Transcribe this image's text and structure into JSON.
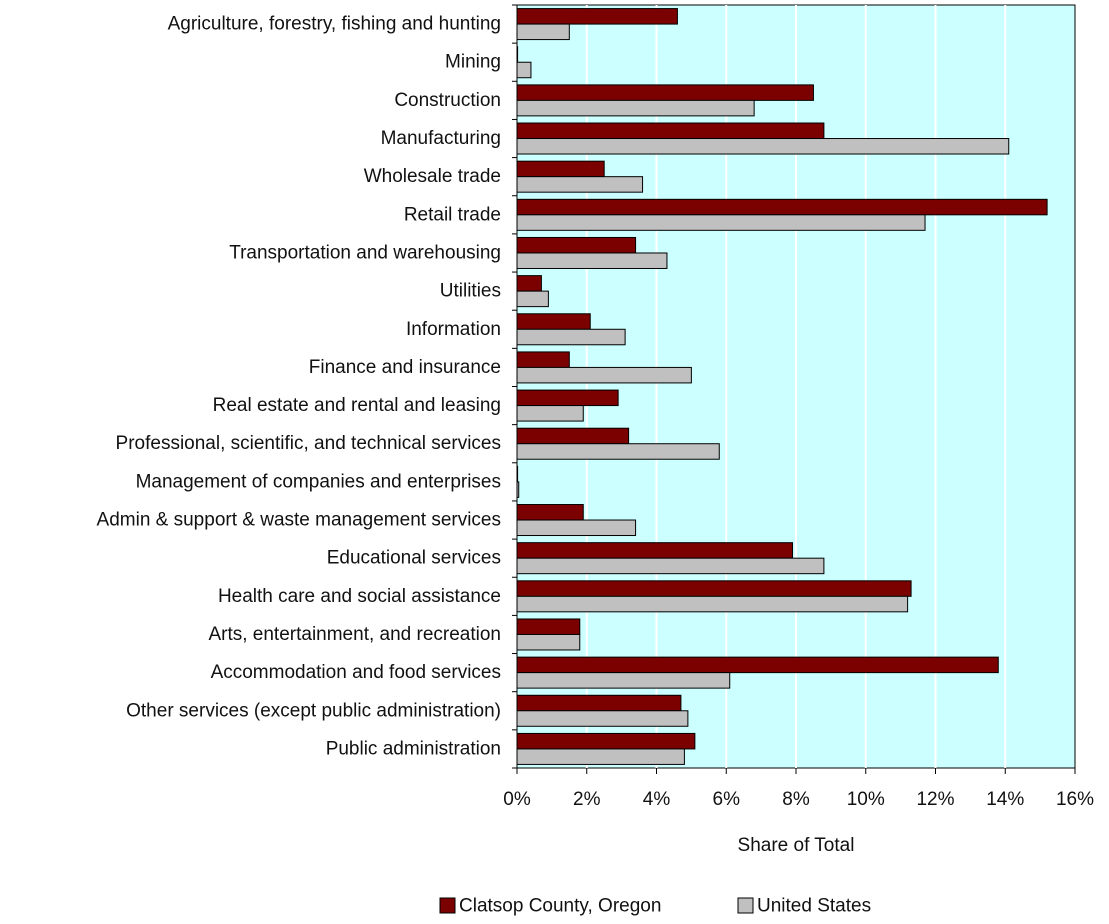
{
  "chart_data": {
    "type": "bar",
    "orientation": "horizontal",
    "xlabel": "Share of Total",
    "xlim": [
      0,
      16
    ],
    "x_ticks": [
      "0%",
      "2%",
      "4%",
      "6%",
      "8%",
      "10%",
      "12%",
      "14%",
      "16%"
    ],
    "grid": "vertical gridlines",
    "legend_position": "bottom",
    "categories": [
      "Agriculture, forestry, fishing and hunting",
      "Mining",
      "Construction",
      "Manufacturing",
      "Wholesale trade",
      "Retail trade",
      "Transportation and warehousing",
      "Utilities",
      "Information",
      "Finance and insurance",
      "Real estate and rental and leasing",
      "Professional, scientific, and technical services",
      "Management of companies and enterprises",
      "Admin & support & waste management services",
      "Educational services",
      "Health care and social assistance",
      "Arts, entertainment, and recreation",
      "Accommodation and food services",
      "Other services (except public administration)",
      "Public administration"
    ],
    "series": [
      {
        "name": "Clatsop County, Oregon",
        "color": "#7b0000",
        "values": [
          4.6,
          0.0,
          8.5,
          8.8,
          2.5,
          15.2,
          3.4,
          0.7,
          2.1,
          1.5,
          2.9,
          3.2,
          0.0,
          1.9,
          7.9,
          11.3,
          1.8,
          13.8,
          4.7,
          5.1
        ]
      },
      {
        "name": "United States",
        "color": "#c0c0c0",
        "values": [
          1.5,
          0.4,
          6.8,
          14.1,
          3.6,
          11.7,
          4.3,
          0.9,
          3.1,
          5.0,
          1.9,
          5.8,
          0.05,
          3.4,
          8.8,
          11.2,
          1.8,
          6.1,
          4.9,
          4.8
        ]
      }
    ]
  },
  "colors": {
    "plot_background": "#ccffff",
    "gridline": "#ffffff",
    "bar_outline": "#000000"
  }
}
